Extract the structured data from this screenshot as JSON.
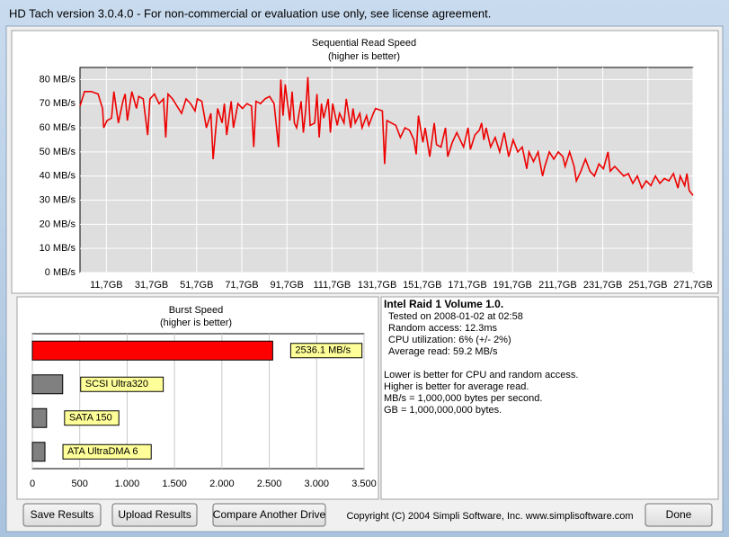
{
  "window": {
    "title": "HD Tach version 3.0.4.0  - For non-commercial or evaluation use only, see license agreement."
  },
  "chart_data": [
    {
      "type": "line",
      "title": "Sequential Read Speed",
      "subtitle": "(higher is better)",
      "color": "#ee0000",
      "grid": true,
      "x": [
        0,
        2,
        5,
        8,
        10,
        10.5,
        12,
        14,
        15,
        17,
        19,
        20,
        21,
        23,
        25,
        26,
        28,
        30,
        31,
        33,
        35,
        37,
        38,
        39,
        41,
        43,
        45,
        47,
        49,
        51,
        52,
        54,
        56,
        58,
        59,
        61,
        63,
        64,
        65,
        67,
        68,
        70,
        72,
        74,
        76,
        77,
        78,
        80,
        82,
        84,
        86,
        88,
        89,
        90,
        91,
        92,
        93,
        94,
        95,
        96,
        98,
        99,
        100,
        101,
        102,
        104,
        105,
        106,
        107,
        108,
        110,
        111,
        112,
        114,
        115,
        117,
        118,
        120,
        121,
        122,
        124,
        125,
        127,
        128,
        130,
        131,
        134,
        135,
        136,
        138,
        140,
        142,
        144,
        146,
        148,
        149,
        150,
        152,
        153,
        155,
        157,
        158,
        160,
        162,
        163,
        165,
        167,
        168,
        170,
        172,
        173,
        175,
        177,
        178,
        179,
        180,
        182,
        184,
        186,
        188,
        190,
        192,
        194,
        196,
        198,
        199,
        201,
        203,
        205,
        206,
        208,
        210,
        212,
        214,
        215,
        217,
        219,
        220,
        222,
        224,
        226,
        228,
        230,
        232,
        234,
        235,
        237,
        239,
        241,
        243,
        245,
        247,
        249,
        251,
        253,
        255,
        257,
        259,
        261,
        263,
        265,
        266,
        268,
        269,
        270,
        271.7
      ],
      "values": [
        69,
        75,
        75,
        74,
        68,
        60,
        63,
        64,
        75,
        62,
        71,
        74,
        63,
        75,
        68,
        73,
        72,
        57,
        72,
        74,
        70,
        72,
        56,
        74,
        72,
        69,
        66,
        72,
        70,
        67,
        72,
        71,
        60,
        66,
        47,
        68,
        62,
        70,
        57,
        71,
        60,
        70,
        68,
        70,
        69,
        52,
        71,
        70,
        72,
        73,
        70,
        52,
        80,
        65,
        78,
        70,
        63,
        75,
        62,
        60,
        71,
        58,
        67,
        81,
        61,
        62,
        74,
        56,
        70,
        64,
        72,
        58,
        70,
        61,
        66,
        62,
        72,
        60,
        68,
        62,
        66,
        60,
        65,
        61,
        66,
        68,
        67,
        45,
        63,
        62,
        61,
        56,
        60,
        59,
        55,
        49,
        65,
        54,
        60,
        48,
        62,
        53,
        52,
        60,
        48,
        54,
        58,
        56,
        52,
        60,
        51,
        57,
        59,
        62,
        55,
        60,
        52,
        56,
        50,
        58,
        48,
        55,
        50,
        52,
        43,
        50,
        46,
        50,
        40,
        44,
        50,
        47,
        50,
        48,
        44,
        50,
        44,
        38,
        42,
        47,
        42,
        40,
        45,
        43,
        50,
        42,
        44,
        42,
        40,
        41,
        37,
        40,
        35,
        38,
        36,
        40,
        37,
        39,
        38,
        41,
        35,
        40,
        36,
        41,
        34,
        32
      ],
      "xlim": [
        0,
        271.7
      ],
      "xticks": [
        {
          "value": 11.7,
          "label": "11,7GB"
        },
        {
          "value": 31.7,
          "label": "31,7GB"
        },
        {
          "value": 51.7,
          "label": "51,7GB"
        },
        {
          "value": 71.7,
          "label": "71,7GB"
        },
        {
          "value": 91.7,
          "label": "91,7GB"
        },
        {
          "value": 111.7,
          "label": "111,7GB"
        },
        {
          "value": 131.7,
          "label": "131,7GB"
        },
        {
          "value": 151.7,
          "label": "151,7GB"
        },
        {
          "value": 171.7,
          "label": "171,7GB"
        },
        {
          "value": 191.7,
          "label": "191,7GB"
        },
        {
          "value": 211.7,
          "label": "211,7GB"
        },
        {
          "value": 231.7,
          "label": "231,7GB"
        },
        {
          "value": 251.7,
          "label": "251,7GB"
        },
        {
          "value": 271.7,
          "label": "271,7GB"
        }
      ],
      "ylim": [
        0,
        85
      ],
      "yticks": [
        {
          "value": 0,
          "label": "0 MB/s"
        },
        {
          "value": 10,
          "label": "10 MB/s"
        },
        {
          "value": 20,
          "label": "20 MB/s"
        },
        {
          "value": 30,
          "label": "30 MB/s"
        },
        {
          "value": 40,
          "label": "40 MB/s"
        },
        {
          "value": 50,
          "label": "50 MB/s"
        },
        {
          "value": 60,
          "label": "60 MB/s"
        },
        {
          "value": 70,
          "label": "70 MB/s"
        },
        {
          "value": 80,
          "label": "80 MB/s"
        }
      ]
    },
    {
      "type": "hbar",
      "title": "Burst Speed",
      "subtitle": "(higher is better)",
      "grid": true,
      "categories": [
        null,
        "SCSI Ultra320",
        "SATA 150",
        "ATA UltraDMA 6"
      ],
      "values": [
        2536.1,
        320,
        150,
        133
      ],
      "value_labels": [
        "2536.1 MB/s",
        null,
        null,
        null
      ],
      "colors": [
        "#ff0000",
        "#808080",
        "#808080",
        "#808080"
      ],
      "xlim": [
        0,
        3500
      ],
      "xticks": [
        0,
        500,
        {
          "value": 1000,
          "label": "1.000"
        },
        {
          "value": 1500,
          "label": "1.500"
        },
        {
          "value": 2000,
          "label": "2.000"
        },
        {
          "value": 2500,
          "label": "2.500"
        },
        {
          "value": 3000,
          "label": "3.000"
        },
        {
          "value": 3500,
          "label": "3.500"
        }
      ]
    }
  ],
  "info": {
    "heading": "Intel Raid 1 Volume 1.0.",
    "stats": [
      "Tested on 2008-01-02 at 02:58",
      "Random access: 12.3ms",
      "CPU utilization: 6% (+/- 2%)",
      "Average read: 59.2 MB/s"
    ],
    "notes": [
      "Lower is better for CPU and random access.",
      "Higher is better for average read.",
      "MB/s = 1,000,000 bytes per second.",
      "GB = 1,000,000,000 bytes."
    ]
  },
  "buttons": [
    "Save Results",
    "Upload Results",
    "Compare Another Drive",
    "Done"
  ],
  "copyright": "Copyright (C) 2004 Simpli Software, Inc. www.simplisoftware.com"
}
